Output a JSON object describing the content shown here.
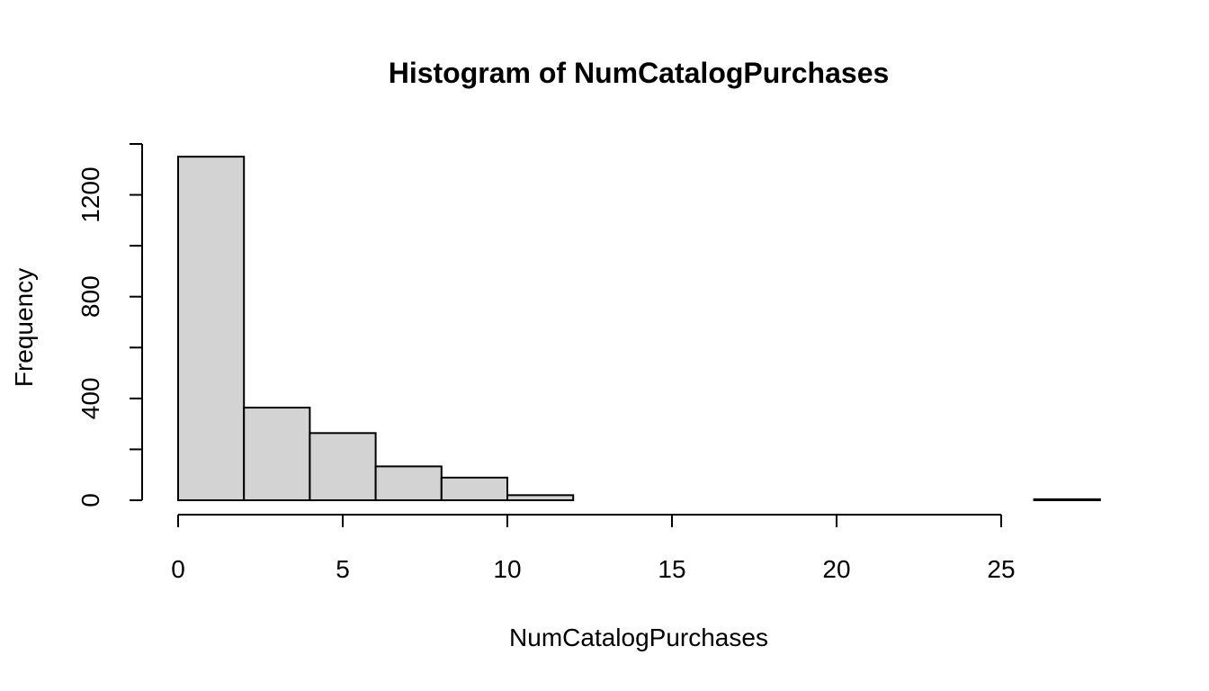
{
  "chart_data": {
    "type": "bar",
    "title": "Histogram of NumCatalogPurchases",
    "xlabel": "NumCatalogPurchases",
    "ylabel": "Frequency",
    "bins": [
      {
        "start": 0,
        "end": 2,
        "count": 1350
      },
      {
        "start": 2,
        "end": 4,
        "count": 364
      },
      {
        "start": 4,
        "end": 6,
        "count": 264
      },
      {
        "start": 6,
        "end": 8,
        "count": 133
      },
      {
        "start": 8,
        "end": 10,
        "count": 89
      },
      {
        "start": 10,
        "end": 12,
        "count": 20
      },
      {
        "start": 12,
        "end": 14,
        "count": 0
      },
      {
        "start": 14,
        "end": 16,
        "count": 0
      },
      {
        "start": 16,
        "end": 18,
        "count": 0
      },
      {
        "start": 18,
        "end": 20,
        "count": 0
      },
      {
        "start": 20,
        "end": 22,
        "count": 0
      },
      {
        "start": 22,
        "end": 24,
        "count": 0
      },
      {
        "start": 24,
        "end": 26,
        "count": 0
      },
      {
        "start": 26,
        "end": 28,
        "count": 4
      }
    ],
    "x_ticks": [
      0,
      5,
      10,
      15,
      20,
      25
    ],
    "y_ticks": [
      0,
      200,
      400,
      600,
      800,
      1000,
      1200,
      1400
    ],
    "y_tick_labels": [
      "0",
      "",
      "400",
      "",
      "800",
      "",
      "1200",
      ""
    ],
    "xlim": [
      0,
      28
    ],
    "ylim": [
      0,
      1400
    ],
    "bar_color": "#d3d3d3",
    "grid": false,
    "legend": "none"
  }
}
